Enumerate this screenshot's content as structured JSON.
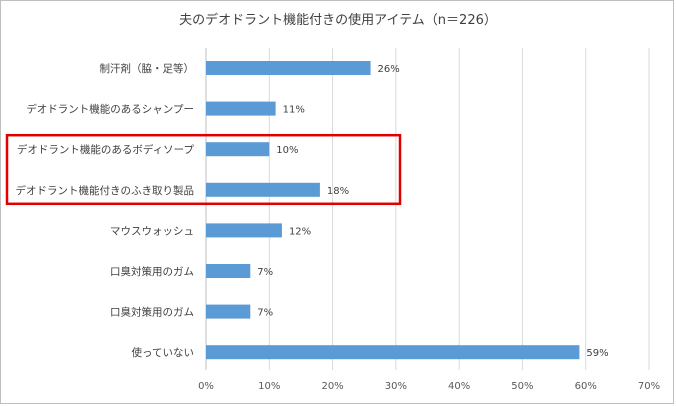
{
  "chart_data": {
    "type": "bar",
    "orientation": "horizontal",
    "title": "夫のデオドラント機能付きの使用アイテム（n＝226）",
    "categories": [
      "制汗剤（脇・足等）",
      "デオドラント機能のあるシャンプー",
      "デオドラント機能のあるボディソープ",
      "デオドラント機能付きのふき取り製品",
      "マウスウォッシュ",
      "口臭対策用のガム",
      "口臭対策用のガム",
      "使っていない"
    ],
    "values": [
      26,
      11,
      10,
      18,
      12,
      7,
      7,
      59
    ],
    "data_labels": [
      "26%",
      "11%",
      "10%",
      "18%",
      "12%",
      "7%",
      "7%",
      "59%"
    ],
    "xlim": [
      0,
      70
    ],
    "x_ticks": [
      "0%",
      "10%",
      "20%",
      "30%",
      "40%",
      "50%",
      "60%",
      "70%"
    ],
    "grid": true,
    "bar_color": "#5b9bd5",
    "highlight": {
      "categories": [
        "デオドラント機能のあるボディソープ",
        "デオドラント機能付きのふき取り製品"
      ],
      "color": "#e00000"
    }
  }
}
